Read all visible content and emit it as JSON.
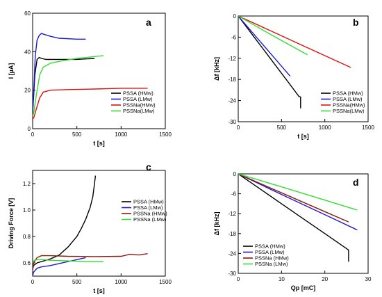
{
  "chart_data": [
    {
      "panel": "a",
      "type": "line",
      "xlabel": "t [s]",
      "ylabel": "I [µA]",
      "xlim": [
        0,
        1500
      ],
      "ylim": [
        0,
        60
      ],
      "xticks": [
        0,
        500,
        1000,
        1500
      ],
      "yticks": [
        0,
        20,
        40,
        60
      ],
      "legend_position": "bottom-right",
      "series": [
        {
          "name": "PSSA (HMw)",
          "color": "#000000",
          "x": [
            0,
            10,
            25,
            50,
            75,
            100,
            150,
            200,
            300,
            500,
            700
          ],
          "y": [
            8,
            16,
            28,
            36,
            37,
            36.5,
            36,
            36,
            36,
            36,
            36.5
          ]
        },
        {
          "name": "PSSA (LMw)",
          "color": "#1a1ad6",
          "x": [
            0,
            15,
            30,
            50,
            75,
            100,
            130,
            200,
            300,
            500,
            600
          ],
          "y": [
            9,
            22,
            38,
            46,
            48.5,
            49.5,
            49,
            48,
            47,
            46.5,
            46.5
          ]
        },
        {
          "name": "PSSNa(HMw)",
          "color": "#e01010",
          "x": [
            0,
            15,
            40,
            80,
            120,
            200,
            400,
            700,
            1000,
            1300
          ],
          "y": [
            5,
            6,
            10,
            16,
            19,
            20,
            20.3,
            20.6,
            21,
            21
          ]
        },
        {
          "name": "PSSNa(LMw)",
          "color": "#33dd33",
          "x": [
            0,
            15,
            40,
            80,
            120,
            200,
            300,
            500,
            700,
            800
          ],
          "y": [
            6,
            9,
            17,
            28,
            32,
            34,
            35,
            36.5,
            37.5,
            38
          ]
        }
      ]
    },
    {
      "panel": "b",
      "type": "line",
      "xlabel": "t [s]",
      "ylabel": "Δf [kHz]",
      "xlim": [
        0,
        1500
      ],
      "ylim": [
        -30,
        0
      ],
      "xticks": [
        0,
        500,
        1000,
        1500
      ],
      "yticks": [
        0,
        -6,
        -12,
        -18,
        -24,
        -30
      ],
      "legend_position": "bottom-right",
      "series": [
        {
          "name": "PSSA (HMw)",
          "color": "#000000",
          "x": [
            0,
            200,
            400,
            600,
            700,
            720,
            720
          ],
          "y": [
            0,
            -6.5,
            -13,
            -19.5,
            -22.8,
            -23,
            -26.2
          ]
        },
        {
          "name": "PSSA (LMw)",
          "color": "#1a1ad6",
          "x": [
            0,
            200,
            400,
            600
          ],
          "y": [
            0,
            -5.7,
            -11.4,
            -17.1
          ]
        },
        {
          "name": "PSSNa(HMw)",
          "color": "#e01010",
          "x": [
            0,
            400,
            800,
            1300
          ],
          "y": [
            0,
            -4.5,
            -9,
            -14.6
          ]
        },
        {
          "name": "PSSNa(LMw)",
          "color": "#33dd33",
          "x": [
            0,
            200,
            400,
            800
          ],
          "y": [
            0,
            -2.8,
            -5.6,
            -11
          ]
        }
      ]
    },
    {
      "panel": "c",
      "type": "line",
      "xlabel": "t [s]",
      "ylabel": "Driving Force [V]",
      "xlim": [
        0,
        1500
      ],
      "ylim": [
        0.5,
        1.3
      ],
      "xticks": [
        0,
        500,
        1000,
        1500
      ],
      "yticks": [
        0.6,
        0.8,
        1.0,
        1.2
      ],
      "legend_position": "right",
      "series": [
        {
          "name": "PSSA  (HMw)",
          "color": "#000000",
          "x": [
            0,
            10,
            50,
            100,
            200,
            300,
            400,
            500,
            550,
            600,
            650,
            680,
            700,
            710
          ],
          "y": [
            0.55,
            0.58,
            0.6,
            0.61,
            0.63,
            0.66,
            0.72,
            0.8,
            0.86,
            0.93,
            1.02,
            1.1,
            1.2,
            1.26
          ]
        },
        {
          "name": "PSSA  (LMw)",
          "color": "#1a1ad6",
          "x": [
            0,
            10,
            50,
            100,
            200,
            300,
            400,
            500,
            600
          ],
          "y": [
            0.5,
            0.53,
            0.56,
            0.57,
            0.58,
            0.595,
            0.61,
            0.625,
            0.64
          ]
        },
        {
          "name": "PSSNa (HMw)",
          "color": "#8b1a0a",
          "x": [
            0,
            10,
            50,
            100,
            200,
            400,
            700,
            1000,
            1100,
            1200,
            1300
          ],
          "y": [
            0.55,
            0.6,
            0.64,
            0.655,
            0.655,
            0.65,
            0.648,
            0.65,
            0.665,
            0.66,
            0.67
          ]
        },
        {
          "name": "PSSNa (LMw)",
          "color": "#33dd33",
          "x": [
            0,
            20,
            60,
            100,
            200,
            400,
            600,
            800
          ],
          "y": [
            0.6,
            0.62,
            0.625,
            0.625,
            0.62,
            0.615,
            0.61,
            0.61
          ]
        }
      ]
    },
    {
      "panel": "d",
      "type": "line",
      "xlabel": "Qp [mC]",
      "ylabel": "Δf [kHz]",
      "xlim": [
        0,
        30
      ],
      "ylim": [
        -30,
        0
      ],
      "xticks": [
        0,
        10,
        20,
        30
      ],
      "yticks": [
        0,
        -6,
        -12,
        -18,
        -24,
        -30
      ],
      "legend_position": "bottom-left",
      "series": [
        {
          "name": "PSSA  (HMw)",
          "color": "#000000",
          "x": [
            0,
            5,
            10,
            15,
            20,
            25,
            25.5,
            25.5
          ],
          "y": [
            0,
            -4.5,
            -9,
            -13.5,
            -18,
            -22.5,
            -23,
            -26.5
          ]
        },
        {
          "name": "PSSA  (LMw)",
          "color": "#1a1ad6",
          "x": [
            0,
            10,
            20,
            27.5
          ],
          "y": [
            0,
            -6.2,
            -12.3,
            -16.9
          ]
        },
        {
          "name": "PSSNa (HMw)",
          "color": "#8b1a0a",
          "x": [
            0,
            10,
            20,
            25.5
          ],
          "y": [
            0,
            -5.7,
            -11.4,
            -14.5
          ]
        },
        {
          "name": "PSSNa (LMw)",
          "color": "#33dd33",
          "x": [
            0,
            10,
            20,
            27.5
          ],
          "y": [
            0,
            -3.9,
            -7.9,
            -10.9
          ]
        }
      ]
    }
  ]
}
